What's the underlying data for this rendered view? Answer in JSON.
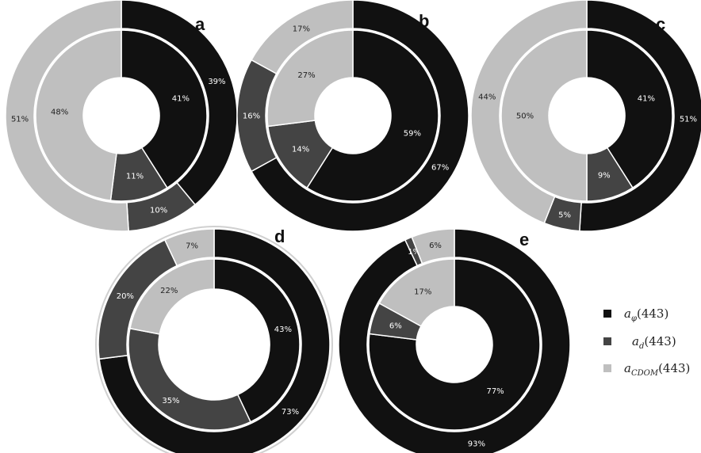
{
  "colors": {
    "a_phi": "#111111",
    "a_d": "#444444",
    "a_cdom": "#bfbfbf"
  },
  "legend": [
    {
      "key": "a_phi",
      "base": "a",
      "sub": "φ",
      "arg": "(443)"
    },
    {
      "key": "a_d",
      "base": "a",
      "sub": "d",
      "arg": "(443)"
    },
    {
      "key": "a_cdom",
      "base": "a",
      "sub": "CDOM",
      "arg": "(443)"
    }
  ],
  "chart_data": [
    {
      "type": "pie",
      "panel": "a",
      "series": [
        {
          "ring": "outer",
          "values": [
            39,
            10,
            51
          ],
          "labels": [
            "39%",
            "10%",
            "51%"
          ]
        },
        {
          "ring": "inner",
          "values": [
            41,
            11,
            48
          ],
          "labels": [
            "41%",
            "11%",
            "48%"
          ]
        }
      ]
    },
    {
      "type": "pie",
      "panel": "b",
      "series": [
        {
          "ring": "outer",
          "values": [
            67,
            16,
            17
          ],
          "labels": [
            "67%",
            "16%",
            "17%"
          ]
        },
        {
          "ring": "inner",
          "values": [
            59,
            14,
            27
          ],
          "labels": [
            "59%",
            "14%",
            "27%"
          ]
        }
      ]
    },
    {
      "type": "pie",
      "panel": "c",
      "series": [
        {
          "ring": "outer",
          "values": [
            51,
            5,
            44
          ],
          "labels": [
            "51%",
            "5%",
            "44%"
          ]
        },
        {
          "ring": "inner",
          "values": [
            41,
            9,
            50
          ],
          "labels": [
            "41%",
            "9%",
            "50%"
          ]
        }
      ]
    },
    {
      "type": "pie",
      "panel": "d",
      "series": [
        {
          "ring": "outer",
          "values": [
            73,
            20,
            7
          ],
          "labels": [
            "73%",
            "20%",
            "7%"
          ]
        },
        {
          "ring": "inner",
          "values": [
            43,
            35,
            22
          ],
          "labels": [
            "43%",
            "35%",
            "22%"
          ]
        }
      ]
    },
    {
      "type": "pie",
      "panel": "e",
      "series": [
        {
          "ring": "outer",
          "values": [
            93,
            1,
            6
          ],
          "labels": [
            "93%",
            "1%",
            "6%"
          ]
        },
        {
          "ring": "inner",
          "values": [
            77,
            6,
            17
          ],
          "labels": [
            "77%",
            "6%",
            "17%"
          ]
        }
      ]
    }
  ]
}
